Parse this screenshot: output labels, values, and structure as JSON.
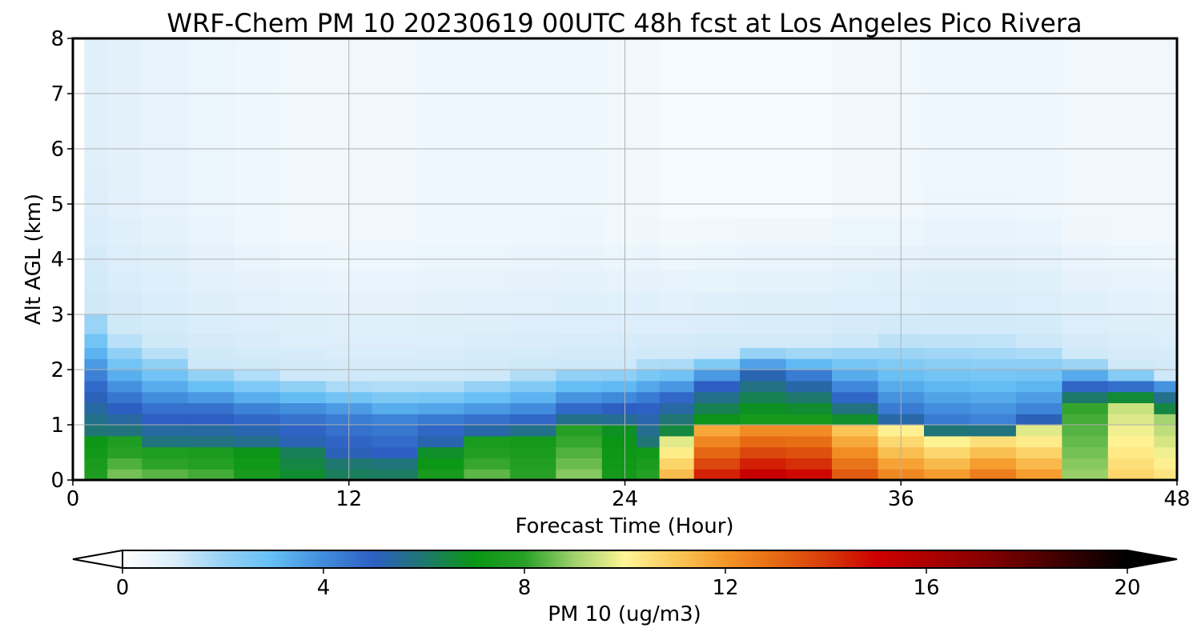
{
  "chart_data": {
    "type": "heatmap",
    "title": "WRF-Chem PM 10  20230619 00UTC 48h fcst at Los Angeles Pico Rivera",
    "xlabel": "Forecast Time (Hour)",
    "ylabel": "Alt AGL (km)",
    "xlim": [
      0,
      48
    ],
    "ylim": [
      0,
      8
    ],
    "xticks": [
      "0",
      "12",
      "24",
      "36",
      "48"
    ],
    "yticks": [
      "0",
      "1",
      "2",
      "3",
      "4",
      "5",
      "6",
      "7",
      "8"
    ],
    "grid": true,
    "colorbar": {
      "label": "PM 10  (ug/m3)",
      "range": [
        0,
        20
      ],
      "ticks": [
        "0",
        "4",
        "8",
        "12",
        "16",
        "20"
      ],
      "extend": "both",
      "orientation": "horizontal"
    },
    "hours": [
      0,
      1,
      2,
      4,
      6,
      8,
      10,
      12,
      14,
      16,
      18,
      20,
      22,
      24,
      25,
      26,
      28,
      30,
      32,
      34,
      36,
      38,
      40,
      42,
      44,
      46,
      48
    ],
    "heights_km": [
      0.1,
      0.3,
      0.5,
      0.7,
      0.9,
      1.1,
      1.3,
      1.5,
      1.7,
      1.9,
      2.1,
      2.3,
      2.5,
      2.8,
      3.2,
      3.6,
      4.0,
      4.5,
      5.0,
      5.5,
      6.0,
      6.5,
      7.0,
      7.5,
      8.0
    ],
    "profiles": {
      "surface_pm10": [
        0.0,
        7.8,
        8.8,
        8.6,
        8.4,
        7.6,
        6.8,
        6.3,
        6.3,
        7.6,
        8.6,
        8.1,
        8.9,
        7.4,
        8.0,
        11.5,
        14.8,
        15.6,
        15.2,
        13.6,
        12.6,
        12.2,
        12.9,
        12.1,
        9.0,
        10.8,
        10.5
      ],
      "surface_layer_top_km": [
        0.0,
        0.7,
        0.7,
        0.6,
        0.6,
        0.6,
        0.5,
        0.4,
        0.3,
        0.5,
        0.7,
        0.8,
        0.9,
        0.9,
        0.6,
        0.8,
        0.9,
        0.9,
        1.0,
        1.0,
        0.9,
        0.8,
        0.8,
        0.9,
        1.3,
        1.4,
        1.2
      ],
      "mid_pm10": [
        0.0,
        5.8,
        5.6,
        5.4,
        5.4,
        5.4,
        5.2,
        5.0,
        5.0,
        5.2,
        5.4,
        5.6,
        6.0,
        5.8,
        5.6,
        5.6,
        5.8,
        6.0,
        5.8,
        5.6,
        5.4,
        5.2,
        5.0,
        5.2,
        6.4,
        6.6,
        6.0
      ],
      "mid_layer_top_km": [
        0.0,
        1.6,
        1.4,
        1.3,
        1.3,
        1.2,
        1.2,
        1.2,
        1.1,
        1.1,
        1.1,
        1.1,
        1.2,
        1.3,
        1.4,
        1.5,
        1.7,
        1.9,
        1.8,
        1.5,
        1.2,
        1.1,
        1.1,
        1.2,
        1.6,
        1.6,
        1.6
      ],
      "haze_top_km": [
        0.0,
        3.1,
        2.6,
        2.4,
        2.1,
        2.0,
        1.9,
        1.8,
        1.8,
        1.8,
        1.9,
        2.0,
        2.1,
        2.1,
        2.2,
        2.2,
        2.3,
        2.4,
        2.4,
        2.5,
        2.6,
        2.6,
        2.6,
        2.5,
        2.2,
        2.0,
        1.9
      ],
      "background_pm10": [
        0.0,
        0.9,
        0.8,
        0.7,
        0.6,
        0.5,
        0.4,
        0.4,
        0.4,
        0.5,
        0.5,
        0.5,
        0.5,
        0.4,
        0.4,
        0.3,
        0.3,
        0.3,
        0.3,
        0.4,
        0.4,
        0.5,
        0.5,
        0.5,
        0.4,
        0.4,
        0.4
      ]
    }
  }
}
